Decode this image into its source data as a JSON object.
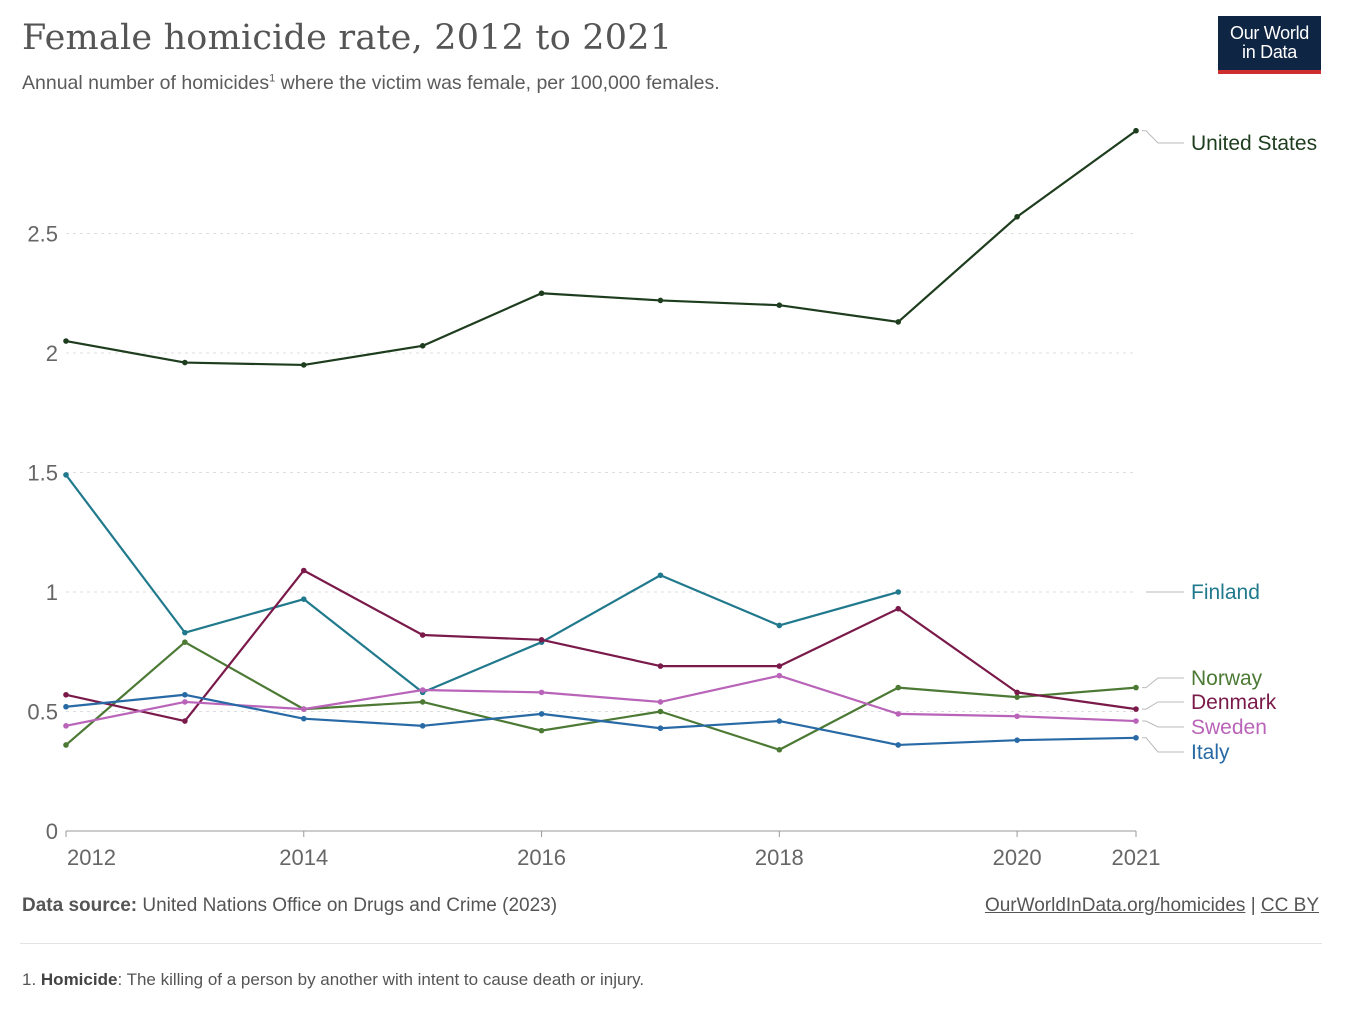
{
  "header": {
    "title": "Female homicide rate, 2012 to 2021",
    "subtitle_pre": "Annual number of homicides",
    "subtitle_sup": "1",
    "subtitle_post": " where the victim was female, per 100,000 females.",
    "logo_line1": "Our World",
    "logo_line2": "in Data"
  },
  "footer": {
    "source_label": "Data source:",
    "source_text": " United Nations Office on Drugs and Crime (2023)",
    "link_text": "OurWorldInData.org/homicides",
    "separator": " | ",
    "license_text": "CC BY",
    "footnote_num": "1. ",
    "footnote_term": "Homicide",
    "footnote_text": ": The killing of a person by another with intent to cause death or injury."
  },
  "chart_data": {
    "type": "line",
    "title": "Female homicide rate, 2012 to 2021",
    "subtitle": "Annual number of homicides where the victim was female, per 100,000 females.",
    "x": [
      2012,
      2013,
      2014,
      2015,
      2016,
      2017,
      2018,
      2019,
      2020,
      2021
    ],
    "xlim": [
      2012,
      2021
    ],
    "ylim": [
      0,
      3
    ],
    "yticks": [
      0,
      0.5,
      1,
      1.5,
      2,
      2.5
    ],
    "ytick_labels": [
      "0",
      "0.5",
      "1",
      "1.5",
      "2",
      "2.5"
    ],
    "xticks": [
      2012,
      2014,
      2016,
      2018,
      2020,
      2021
    ],
    "xtick_labels": [
      "2012",
      "2014",
      "2016",
      "2018",
      "2020",
      "2021"
    ],
    "grid": "horizontal dashed",
    "legend": "right, labels at line ends",
    "series": [
      {
        "name": "United States",
        "color": "#1e3d1e",
        "values": [
          2.05,
          1.96,
          1.95,
          2.03,
          2.25,
          2.22,
          2.2,
          2.13,
          2.57,
          2.93
        ]
      },
      {
        "name": "Finland",
        "color": "#20798c",
        "values": [
          1.49,
          0.83,
          0.97,
          0.58,
          0.79,
          1.07,
          0.86,
          1.0,
          null,
          null
        ]
      },
      {
        "name": "Norway",
        "color": "#4c7a34",
        "values": [
          0.36,
          0.79,
          0.51,
          0.54,
          0.42,
          0.5,
          0.34,
          0.6,
          0.56,
          0.6
        ]
      },
      {
        "name": "Denmark",
        "color": "#7a1a4a",
        "values": [
          0.57,
          0.46,
          1.09,
          0.82,
          0.8,
          0.69,
          0.69,
          0.93,
          0.58,
          0.51
        ]
      },
      {
        "name": "Sweden",
        "color": "#b964b9",
        "values": [
          0.44,
          0.54,
          0.51,
          0.59,
          0.58,
          0.54,
          0.65,
          0.49,
          0.48,
          0.46
        ]
      },
      {
        "name": "Italy",
        "color": "#286aa5",
        "values": [
          0.52,
          0.57,
          0.47,
          0.44,
          0.49,
          0.43,
          0.46,
          0.36,
          0.38,
          0.39
        ]
      }
    ]
  }
}
